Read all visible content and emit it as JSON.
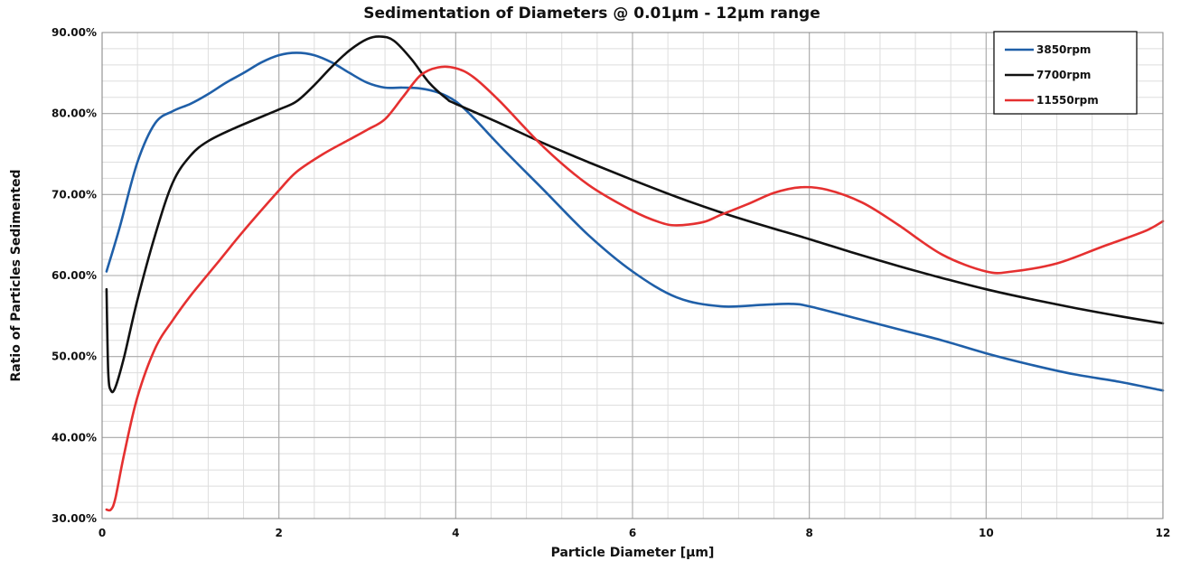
{
  "chart_data": {
    "type": "line",
    "title": "Sedimentation of Diameters @ 0.01µm - 12µm range",
    "xlabel": "Particle Diameter [µm]",
    "ylabel": "Ratio of Particles Sedimented",
    "xlim": [
      0,
      12
    ],
    "ylim": [
      30,
      90
    ],
    "xticks": [
      0,
      2,
      4,
      6,
      8,
      10,
      12
    ],
    "xtick_labels": [
      "0",
      "2",
      "4",
      "6",
      "8",
      "10",
      "12"
    ],
    "yticks": [
      30,
      40,
      50,
      60,
      70,
      80,
      90
    ],
    "ytick_labels": [
      "30.00%",
      "40.00%",
      "50.00%",
      "60.00%",
      "70.00%",
      "80.00%",
      "90.00%"
    ],
    "grid": true,
    "legend_position": "top-right",
    "series": [
      {
        "name": "3850rpm",
        "color": "#1f5fa8",
        "points": [
          [
            0.05,
            60.5
          ],
          [
            0.2,
            66
          ],
          [
            0.4,
            74
          ],
          [
            0.6,
            78.8
          ],
          [
            0.8,
            80.3
          ],
          [
            1.0,
            81.2
          ],
          [
            1.2,
            82.4
          ],
          [
            1.4,
            83.8
          ],
          [
            1.6,
            85
          ],
          [
            1.8,
            86.3
          ],
          [
            2.0,
            87.2
          ],
          [
            2.2,
            87.5
          ],
          [
            2.4,
            87.2
          ],
          [
            2.6,
            86.3
          ],
          [
            2.8,
            85
          ],
          [
            3.0,
            83.8
          ],
          [
            3.2,
            83.2
          ],
          [
            3.4,
            83.2
          ],
          [
            3.6,
            83.1
          ],
          [
            3.8,
            82.6
          ],
          [
            4.0,
            81.5
          ],
          [
            4.2,
            79.5
          ],
          [
            4.5,
            76
          ],
          [
            5.0,
            70.5
          ],
          [
            5.5,
            65
          ],
          [
            6.0,
            60.5
          ],
          [
            6.5,
            57.3
          ],
          [
            7.0,
            56.2
          ],
          [
            7.5,
            56.4
          ],
          [
            7.8,
            56.5
          ],
          [
            8.0,
            56.2
          ],
          [
            8.5,
            54.8
          ],
          [
            9.0,
            53.4
          ],
          [
            9.5,
            52
          ],
          [
            10.0,
            50.4
          ],
          [
            10.5,
            49
          ],
          [
            11.0,
            47.8
          ],
          [
            11.5,
            46.9
          ],
          [
            12.0,
            45.8
          ]
        ]
      },
      {
        "name": "7700rpm",
        "color": "#111111",
        "points": [
          [
            0.05,
            58.3
          ],
          [
            0.07,
            48
          ],
          [
            0.1,
            45.8
          ],
          [
            0.15,
            46.2
          ],
          [
            0.25,
            50
          ],
          [
            0.4,
            57
          ],
          [
            0.6,
            65
          ],
          [
            0.8,
            71.5
          ],
          [
            1.0,
            74.8
          ],
          [
            1.2,
            76.6
          ],
          [
            1.5,
            78.2
          ],
          [
            2.0,
            80.5
          ],
          [
            2.2,
            81.5
          ],
          [
            2.4,
            83.5
          ],
          [
            2.6,
            85.8
          ],
          [
            2.8,
            87.8
          ],
          [
            3.0,
            89.2
          ],
          [
            3.15,
            89.5
          ],
          [
            3.3,
            89
          ],
          [
            3.5,
            86.7
          ],
          [
            3.7,
            83.8
          ],
          [
            3.9,
            81.8
          ],
          [
            4.0,
            81.2
          ],
          [
            4.5,
            78.8
          ],
          [
            5.0,
            76.3
          ],
          [
            5.5,
            74
          ],
          [
            6.0,
            71.8
          ],
          [
            6.5,
            69.7
          ],
          [
            7.0,
            67.8
          ],
          [
            7.5,
            66.1
          ],
          [
            8.0,
            64.5
          ],
          [
            8.5,
            62.8
          ],
          [
            9.0,
            61.2
          ],
          [
            9.5,
            59.7
          ],
          [
            10.0,
            58.3
          ],
          [
            10.5,
            57.1
          ],
          [
            11.0,
            56
          ],
          [
            11.5,
            55
          ],
          [
            12.0,
            54.1
          ]
        ]
      },
      {
        "name": "11550rpm",
        "color": "#e53030",
        "points": [
          [
            0.05,
            31.1
          ],
          [
            0.1,
            31.1
          ],
          [
            0.15,
            32.5
          ],
          [
            0.25,
            38
          ],
          [
            0.4,
            45
          ],
          [
            0.6,
            51
          ],
          [
            0.8,
            54.5
          ],
          [
            1.0,
            57.5
          ],
          [
            1.3,
            61.5
          ],
          [
            1.6,
            65.5
          ],
          [
            2.0,
            70.5
          ],
          [
            2.2,
            72.8
          ],
          [
            2.5,
            75
          ],
          [
            2.8,
            76.8
          ],
          [
            3.0,
            78
          ],
          [
            3.2,
            79.3
          ],
          [
            3.4,
            82
          ],
          [
            3.6,
            84.7
          ],
          [
            3.8,
            85.7
          ],
          [
            4.0,
            85.6
          ],
          [
            4.2,
            84.5
          ],
          [
            4.5,
            81.5
          ],
          [
            5.0,
            75.8
          ],
          [
            5.5,
            71.2
          ],
          [
            6.0,
            68
          ],
          [
            6.3,
            66.6
          ],
          [
            6.5,
            66.2
          ],
          [
            6.8,
            66.6
          ],
          [
            7.0,
            67.5
          ],
          [
            7.3,
            68.8
          ],
          [
            7.6,
            70.2
          ],
          [
            7.9,
            70.9
          ],
          [
            8.2,
            70.6
          ],
          [
            8.6,
            69
          ],
          [
            9.0,
            66.3
          ],
          [
            9.5,
            62.6
          ],
          [
            10.0,
            60.5
          ],
          [
            10.3,
            60.5
          ],
          [
            10.8,
            61.5
          ],
          [
            11.3,
            63.5
          ],
          [
            11.8,
            65.5
          ],
          [
            12.0,
            66.7
          ]
        ]
      }
    ]
  }
}
